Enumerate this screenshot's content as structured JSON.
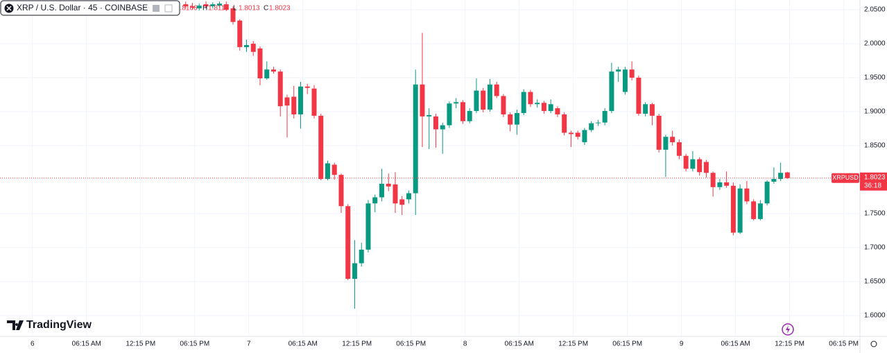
{
  "chart_data": {
    "type": "candlestick",
    "title": "XRP / U.S. Dollar · 45 · COINBASE",
    "watermark": "TradingView",
    "ohlc_letters": [
      "O",
      "H",
      "L",
      "C"
    ],
    "symbol_tag": "XRPUSD",
    "countdown": "36:18",
    "up_color": "#089981",
    "down_color": "#f23645",
    "grid": true,
    "xlim": [
      -3.6,
      91.8
    ],
    "ylim": [
      1.5694,
      2.0643
    ],
    "xticks": [
      {
        "value": 0,
        "label": "6"
      },
      {
        "value": 6,
        "label": "06:15 AM"
      },
      {
        "value": 12,
        "label": "12:15 PM"
      },
      {
        "value": 18,
        "label": "06:15 PM"
      },
      {
        "value": 24,
        "label": "7"
      },
      {
        "value": 30,
        "label": "06:15 AM"
      },
      {
        "value": 36,
        "label": "12:15 PM"
      },
      {
        "value": 42,
        "label": "06:15 PM"
      },
      {
        "value": 48,
        "label": "8"
      },
      {
        "value": 54,
        "label": "06:15 AM"
      },
      {
        "value": 60,
        "label": "12:15 PM"
      },
      {
        "value": 66,
        "label": "06:15 PM"
      },
      {
        "value": 72,
        "label": "9"
      },
      {
        "value": 78,
        "label": "06:15 AM"
      },
      {
        "value": 84,
        "label": "12:15 PM"
      },
      {
        "value": 90,
        "label": "06:15 PM"
      }
    ],
    "yticks": [
      {
        "value": 2.05,
        "label": "2.0500"
      },
      {
        "value": 2.0,
        "label": "2.0000"
      },
      {
        "value": 1.95,
        "label": "1.9500"
      },
      {
        "value": 1.9,
        "label": "1.9000"
      },
      {
        "value": 1.85,
        "label": "1.8500"
      },
      {
        "value": 1.8,
        "label": "1.8000"
      },
      {
        "value": 1.75,
        "label": "1.7500"
      },
      {
        "value": 1.7,
        "label": "1.7000"
      },
      {
        "value": 1.65,
        "label": "1.6500"
      },
      {
        "value": 1.6,
        "label": "1.6000"
      }
    ],
    "x": [
      17,
      17.75,
      18.5,
      19.25,
      20,
      20.75,
      21.5,
      22.25,
      23,
      23.75,
      24.5,
      25.25,
      26,
      26.75,
      27.5,
      28.25,
      29,
      29.75,
      30.5,
      31.25,
      32,
      32.75,
      33.5,
      34.25,
      35,
      35.75,
      36.5,
      37.25,
      38,
      38.75,
      39.5,
      40.25,
      41,
      41.75,
      42.5,
      43.25,
      44,
      44.75,
      45.5,
      46.25,
      47,
      47.75,
      48.5,
      49.25,
      50,
      50.75,
      51.5,
      52.25,
      53,
      53.75,
      54.5,
      55.25,
      56,
      56.75,
      57.5,
      58.25,
      59,
      59.75,
      60.5,
      61.25,
      62,
      62.75,
      63.5,
      64.25,
      65,
      65.75,
      66.5,
      67.25,
      68,
      68.75,
      69.5,
      70.25,
      71,
      71.75,
      72.5,
      73.25,
      74,
      74.75,
      75.5,
      76.25,
      77,
      77.75,
      78.5,
      79.25,
      80,
      80.75,
      81.5,
      82.25,
      83,
      83.75
    ],
    "open": [
      2.058,
      2.055,
      2.052,
      2.058,
      2.055,
      2.056,
      2.058,
      2.052,
      2.034,
      1.995,
      2.0,
      1.993,
      1.949,
      1.962,
      1.959,
      1.921,
      1.922,
      1.896,
      1.937,
      1.934,
      1.894,
      1.801,
      1.822,
      1.807,
      1.761,
      1.654,
      1.677,
      1.697,
      1.765,
      1.774,
      1.794,
      1.793,
      1.771,
      1.771,
      1.78,
      1.94,
      1.893,
      1.893,
      1.874,
      1.88,
      1.912,
      1.914,
      1.886,
      1.901,
      1.931,
      1.903,
      1.94,
      1.923,
      1.896,
      1.881,
      1.898,
      1.929,
      1.911,
      1.913,
      1.901,
      1.905,
      1.896,
      1.869,
      1.869,
      1.855,
      1.873,
      1.883,
      1.884,
      1.901,
      1.959,
      1.929,
      1.962,
      1.95,
      1.897,
      1.911,
      1.894,
      1.844,
      1.863,
      1.855,
      1.835,
      1.816,
      1.83,
      1.826,
      1.81,
      1.789,
      1.796,
      1.791,
      1.722,
      1.787,
      1.768,
      1.742,
      1.765,
      1.797,
      1.801,
      1.8106
    ],
    "high": [
      2.062,
      2.06,
      2.059,
      2.062,
      2.061,
      2.062,
      2.062,
      2.055,
      2.036,
      2.006,
      2.004,
      1.996,
      1.974,
      1.966,
      1.962,
      1.925,
      1.938,
      1.944,
      1.941,
      1.939,
      1.897,
      1.828,
      1.825,
      1.809,
      1.764,
      1.711,
      1.707,
      1.77,
      1.778,
      1.816,
      1.809,
      1.811,
      1.776,
      1.784,
      1.962,
      2.016,
      1.905,
      1.897,
      1.884,
      1.915,
      1.92,
      1.917,
      1.905,
      1.949,
      1.935,
      1.948,
      1.944,
      1.926,
      1.899,
      1.903,
      1.933,
      1.932,
      1.918,
      1.916,
      1.918,
      1.908,
      1.899,
      1.872,
      1.872,
      1.876,
      1.886,
      1.888,
      1.905,
      1.972,
      1.966,
      1.966,
      1.974,
      1.953,
      1.914,
      1.913,
      1.897,
      1.866,
      1.872,
      1.859,
      1.838,
      1.842,
      1.833,
      1.829,
      1.812,
      1.801,
      1.812,
      1.796,
      1.793,
      1.798,
      1.771,
      1.77,
      1.799,
      1.818,
      1.825,
      1.8115
    ],
    "low": [
      2.052,
      2.05,
      2.049,
      2.052,
      2.052,
      2.053,
      2.048,
      2.028,
      1.99,
      1.988,
      1.982,
      1.939,
      1.947,
      1.956,
      1.893,
      1.862,
      1.89,
      1.875,
      1.926,
      1.89,
      1.799,
      1.799,
      1.8,
      1.751,
      1.652,
      1.61,
      1.672,
      1.693,
      1.752,
      1.768,
      1.783,
      1.751,
      1.748,
      1.765,
      1.748,
      1.848,
      1.845,
      1.847,
      1.838,
      1.876,
      1.905,
      1.882,
      1.883,
      1.898,
      1.899,
      1.9,
      1.92,
      1.892,
      1.871,
      1.866,
      1.895,
      1.907,
      1.906,
      1.897,
      1.898,
      1.892,
      1.865,
      1.848,
      1.859,
      1.851,
      1.87,
      1.879,
      1.88,
      1.898,
      1.944,
      1.925,
      1.946,
      1.894,
      1.893,
      1.88,
      1.84,
      1.804,
      1.85,
      1.83,
      1.812,
      1.812,
      1.806,
      1.803,
      1.775,
      1.785,
      1.788,
      1.718,
      1.72,
      1.764,
      1.74,
      1.74,
      1.762,
      1.794,
      1.798,
      1.8013
    ],
    "close": [
      2.055,
      2.053,
      2.056,
      2.055,
      2.058,
      2.059,
      2.05,
      2.032,
      1.995,
      1.998,
      1.988,
      1.949,
      1.962,
      1.959,
      1.908,
      1.909,
      1.896,
      1.937,
      1.935,
      1.894,
      1.801,
      1.824,
      1.807,
      1.761,
      1.654,
      1.677,
      1.697,
      1.765,
      1.774,
      1.794,
      1.79,
      1.765,
      1.763,
      1.78,
      1.94,
      1.893,
      1.895,
      1.874,
      1.88,
      1.912,
      1.914,
      1.886,
      1.901,
      1.931,
      1.903,
      1.94,
      1.923,
      1.896,
      1.881,
      1.898,
      1.929,
      1.911,
      1.913,
      1.901,
      1.911,
      1.896,
      1.869,
      1.867,
      1.863,
      1.873,
      1.883,
      1.884,
      1.901,
      1.959,
      1.962,
      1.962,
      1.95,
      1.897,
      1.911,
      1.894,
      1.844,
      1.863,
      1.855,
      1.835,
      1.816,
      1.83,
      1.811,
      1.81,
      1.789,
      1.796,
      1.791,
      1.722,
      1.787,
      1.768,
      1.742,
      1.765,
      1.797,
      1.801,
      1.81,
      1.8023
    ]
  }
}
